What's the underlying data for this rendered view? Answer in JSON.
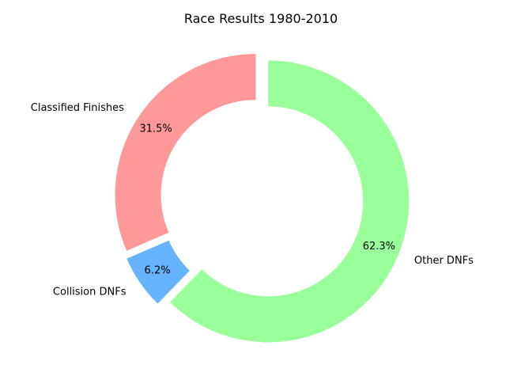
{
  "chart_data": {
    "type": "pie",
    "style": "donut",
    "title": "Race Results 1980-2010",
    "start_angle_deg": 90,
    "direction": "counterclockwise",
    "exploded": true,
    "slices": [
      {
        "label": "Classified Finishes",
        "value": 31.5,
        "pct_label": "31.5%",
        "color": "#ff9999"
      },
      {
        "label": "Collision DNFs",
        "value": 6.2,
        "pct_label": "6.2%",
        "color": "#66b3ff"
      },
      {
        "label": "Other DNFs",
        "value": 62.3,
        "pct_label": "62.3%",
        "color": "#99ff99"
      }
    ]
  }
}
